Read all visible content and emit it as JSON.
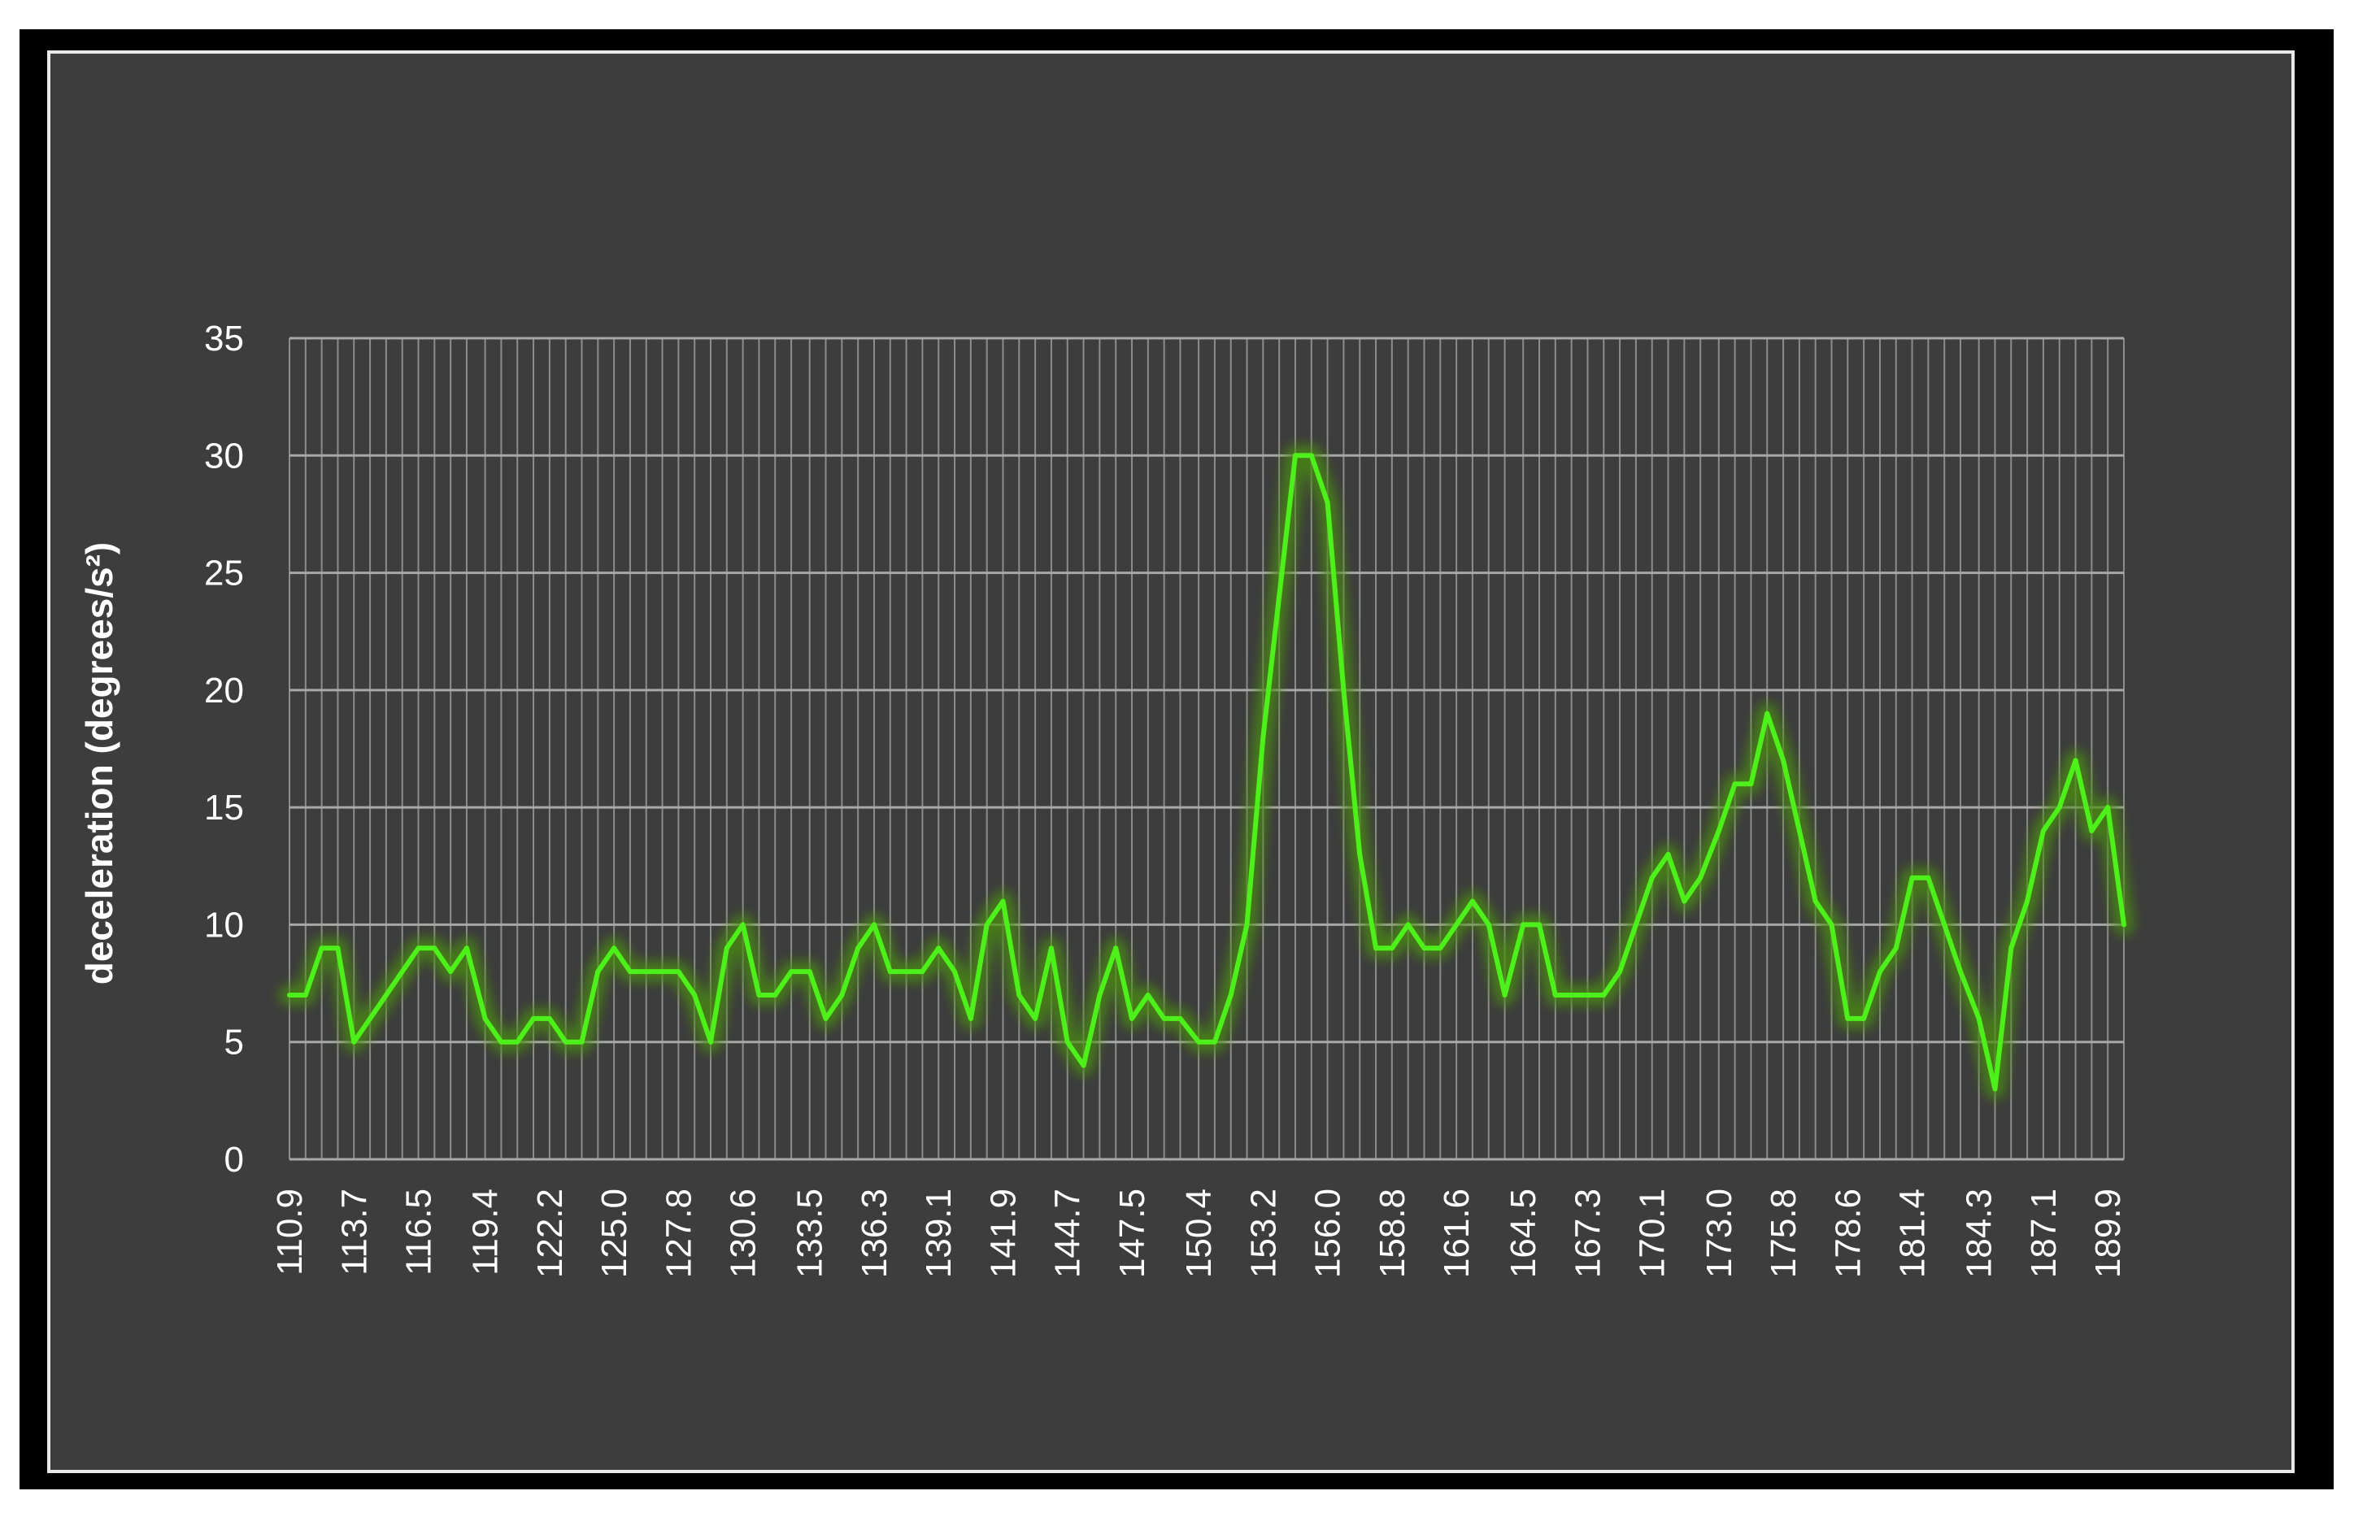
{
  "chart_data": {
    "type": "line",
    "title": "",
    "xlabel": "",
    "ylabel": "deceleration (degrees/s²)",
    "ylim": [
      0,
      35
    ],
    "yticks": [
      0,
      5,
      10,
      15,
      20,
      25,
      30,
      35
    ],
    "grid": true,
    "legend": "none",
    "x_tick_labels": [
      "110.9",
      "113.7",
      "116.5",
      "119.4",
      "122.2",
      "125.0",
      "127.8",
      "130.6",
      "133.5",
      "136.3",
      "139.1",
      "141.9",
      "144.7",
      "147.5",
      "150.4",
      "153.2",
      "156.0",
      "158.8",
      "161.6",
      "164.5",
      "167.3",
      "170.1",
      "173.0",
      "175.8",
      "178.6",
      "181.4",
      "184.3",
      "187.1",
      "189.9"
    ],
    "x": [
      110.9,
      111.6,
      112.3,
      113.0,
      113.7,
      114.4,
      115.1,
      115.8,
      116.5,
      117.2,
      117.9,
      118.6,
      119.4,
      120.1,
      120.8,
      121.5,
      122.2,
      122.9,
      123.6,
      124.3,
      125.0,
      125.7,
      126.4,
      127.1,
      127.8,
      128.5,
      129.2,
      129.9,
      130.6,
      131.3,
      132.0,
      132.7,
      133.5,
      134.2,
      134.9,
      135.6,
      136.3,
      137.0,
      137.7,
      138.4,
      139.1,
      139.8,
      140.5,
      141.2,
      141.9,
      142.6,
      143.3,
      144.0,
      144.7,
      145.4,
      146.1,
      146.8,
      147.5,
      148.2,
      148.9,
      149.6,
      150.4,
      151.1,
      151.8,
      152.5,
      153.2,
      153.9,
      154.6,
      155.3,
      156.0,
      156.7,
      157.4,
      158.1,
      158.8,
      159.5,
      160.2,
      160.9,
      161.6,
      162.3,
      163.0,
      163.7,
      164.5,
      165.2,
      165.9,
      166.6,
      167.3,
      168.0,
      168.7,
      169.4,
      170.1,
      170.8,
      171.5,
      172.2,
      173.0,
      173.7,
      174.4,
      175.1,
      175.8,
      176.5,
      177.2,
      177.9,
      178.6,
      179.3,
      180.0,
      180.7,
      181.4,
      182.1,
      182.8,
      183.5,
      184.3,
      185.0,
      185.7,
      186.4,
      187.1,
      187.8,
      188.5,
      189.2,
      189.9,
      190.6
    ],
    "series": [
      {
        "color": "#4ef01c",
        "values": [
          7,
          7,
          9,
          9,
          5,
          6,
          7,
          8,
          9,
          9,
          8,
          9,
          6,
          5,
          5,
          6,
          6,
          5,
          5,
          8,
          9,
          8,
          8,
          8,
          8,
          7,
          5,
          9,
          10,
          7,
          7,
          8,
          8,
          6,
          7,
          9,
          10,
          8,
          8,
          8,
          9,
          8,
          6,
          10,
          11,
          7,
          6,
          9,
          5,
          4,
          7,
          9,
          6,
          7,
          6,
          6,
          5,
          5,
          7,
          10,
          18,
          24,
          30,
          30,
          28,
          20,
          13,
          9,
          9,
          10,
          9,
          9,
          10,
          11,
          10,
          7,
          10,
          10,
          7,
          7,
          7,
          7,
          8,
          10,
          12,
          13,
          11,
          12,
          14,
          16,
          16,
          19,
          17,
          14,
          11,
          10,
          6,
          6,
          8,
          9,
          12,
          12,
          10,
          8,
          6,
          3,
          9,
          11,
          14,
          15,
          17,
          14,
          15,
          10
        ]
      }
    ]
  }
}
